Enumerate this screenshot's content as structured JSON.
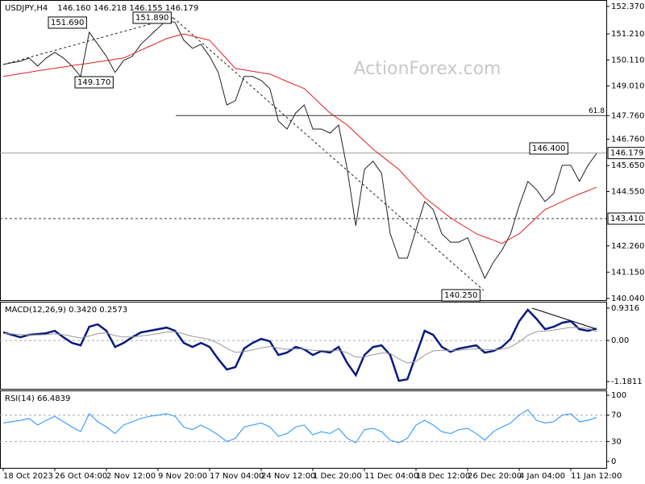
{
  "chart_data": [
    {
      "type": "line",
      "title": "USDJPY,H4",
      "subtitle": "146.160 146.218 146.155 146.179",
      "watermark": "ActionForex.com",
      "ylim": [
        139.97,
        152.64
      ],
      "yticks": [
        {
          "value": 152.37,
          "label": "152.370"
        },
        {
          "value": 151.21,
          "label": "151.210"
        },
        {
          "value": 150.11,
          "label": "150.110"
        },
        {
          "value": 149.01,
          "label": "149.010"
        },
        {
          "value": 147.76,
          "label": "147.760"
        },
        {
          "value": 146.76,
          "label": "146.760"
        },
        {
          "value": 145.65,
          "label": "145.650"
        },
        {
          "value": 144.55,
          "label": "144.550"
        },
        {
          "value": 142.26,
          "label": "142.260"
        },
        {
          "value": 141.15,
          "label": "141.150"
        },
        {
          "value": 140.04,
          "label": "140.040"
        }
      ],
      "levels": [
        {
          "value": 143.41,
          "label": "143.410",
          "style": "dashed"
        },
        {
          "value": 146.179,
          "label": "146.179",
          "style": "current"
        },
        {
          "value": 147.76,
          "label": "61.8",
          "style": "fib"
        }
      ],
      "annotations": [
        "151.690",
        "151.890",
        "149.170",
        "140.250",
        "146.400"
      ],
      "series": [
        {
          "color": "#222222",
          "values": [
            149.92,
            149.99,
            150.05,
            150.19,
            149.85,
            150.19,
            150.43,
            150.19,
            149.85,
            149.41,
            151.28,
            150.77,
            150.26,
            149.58,
            150.09,
            150.26,
            150.77,
            151.11,
            151.45,
            151.79,
            151.69,
            150.94,
            150.6,
            150.77,
            150.26,
            149.58,
            148.21,
            148.39,
            149.41,
            149.41,
            149.24,
            148.9,
            147.53,
            147.19,
            147.87,
            148.21,
            147.19,
            147.19,
            147.02,
            147.36,
            145.49,
            143.11,
            145.49,
            145.83,
            145.32,
            142.77,
            141.74,
            141.74,
            142.94,
            144.13,
            143.79,
            142.77,
            142.42,
            142.42,
            142.6,
            141.74,
            140.89,
            141.57,
            142.08,
            142.77,
            143.96,
            144.98,
            144.64,
            144.13,
            144.47,
            145.66,
            145.66,
            144.98,
            145.66,
            146.17
          ]
        },
        {
          "color": "#e02020",
          "values": [
            149.41,
            149.47,
            149.53,
            149.59,
            149.65,
            149.7,
            149.76,
            149.81,
            149.87,
            149.92,
            149.97,
            150.03,
            150.08,
            150.14,
            150.19,
            150.35,
            150.52,
            150.68,
            150.85,
            151.01,
            151.11,
            151.21,
            151.12,
            151.03,
            150.94,
            150.54,
            150.15,
            149.75,
            149.69,
            149.63,
            149.57,
            149.51,
            149.36,
            149.2,
            149.05,
            148.9,
            148.56,
            148.21,
            147.87,
            147.62,
            147.36,
            147.02,
            146.68,
            146.34,
            146.06,
            145.77,
            145.49,
            145.09,
            144.7,
            144.3,
            144.02,
            143.73,
            143.45,
            143.22,
            143.0,
            142.77,
            142.63,
            142.5,
            142.36,
            142.57,
            142.77,
            143.11,
            143.45,
            143.79,
            143.96,
            144.13,
            144.3,
            144.45,
            144.59,
            144.74
          ]
        }
      ]
    },
    {
      "type": "line",
      "title": "MACD(12,26,9) 0.3420 0.2573",
      "ylim": [
        -1.39,
        1.117
      ],
      "yticks": [
        0.9316,
        {
          "value": 0,
          "label": "0.00"
        },
        -1.1811
      ],
      "series": [
        {
          "color": "#0a1a80",
          "values": [
            0.232,
            0.163,
            0.093,
            0.163,
            0.186,
            0.209,
            0.279,
            0.093,
            -0.07,
            -0.139,
            0.395,
            0.464,
            0.279,
            -0.186,
            -0.07,
            0.093,
            0.232,
            0.279,
            0.325,
            0.372,
            0.279,
            -0.07,
            -0.186,
            -0.07,
            -0.186,
            -0.534,
            -0.836,
            -0.766,
            -0.232,
            -0.07,
            0.046,
            -0.023,
            -0.418,
            -0.348,
            -0.186,
            -0.255,
            -0.418,
            -0.302,
            -0.348,
            -0.186,
            -0.65,
            -0.998,
            -0.418,
            -0.186,
            -0.139,
            -0.418,
            -1.161,
            -1.115,
            -0.418,
            0.279,
            0.163,
            -0.186,
            -0.325,
            -0.232,
            -0.186,
            -0.139,
            -0.348,
            -0.302,
            -0.186,
            0.046,
            0.557,
            0.882,
            0.627,
            0.325,
            0.395,
            0.511,
            0.557,
            0.325,
            0.279,
            0.342
          ]
        },
        {
          "color": "#999999",
          "values": [
            0.2,
            0.19,
            0.17,
            0.16,
            0.16,
            0.17,
            0.19,
            0.17,
            0.12,
            0.07,
            0.13,
            0.2,
            0.22,
            0.14,
            0.1,
            0.1,
            0.13,
            0.16,
            0.2,
            0.24,
            0.25,
            0.19,
            0.12,
            0.08,
            0.03,
            -0.08,
            -0.23,
            -0.34,
            -0.32,
            -0.27,
            -0.21,
            -0.17,
            -0.22,
            -0.25,
            -0.24,
            -0.24,
            -0.28,
            -0.29,
            -0.3,
            -0.28,
            -0.35,
            -0.48,
            -0.47,
            -0.41,
            -0.36,
            -0.37,
            -0.53,
            -0.65,
            -0.6,
            -0.42,
            -0.3,
            -0.28,
            -0.29,
            -0.28,
            -0.26,
            -0.24,
            -0.26,
            -0.27,
            -0.25,
            -0.19,
            -0.04,
            0.15,
            0.25,
            0.27,
            0.3,
            0.34,
            0.38,
            0.37,
            0.35,
            0.257
          ]
        }
      ]
    },
    {
      "type": "line",
      "title": "RSI(14) 66.4839",
      "ylim": [
        -9.8,
        107.3
      ],
      "yticks": [
        100,
        70,
        30,
        0
      ],
      "levels": [
        70,
        30
      ],
      "categories": [
        "18 Oct 2023",
        null,
        null,
        null,
        null,
        null,
        "26 Oct 04:00",
        null,
        null,
        null,
        null,
        null,
        "2 Nov 12:00",
        null,
        null,
        null,
        null,
        null,
        "9 Nov 20:00",
        null,
        null,
        null,
        null,
        null,
        "17 Nov 04:00",
        null,
        null,
        null,
        null,
        null,
        "24 Nov 12:00",
        null,
        null,
        null,
        null,
        null,
        "1 Dec 20:00",
        null,
        null,
        null,
        null,
        null,
        "11 Dec 04:00",
        null,
        null,
        null,
        null,
        null,
        "18 Dec 12:00",
        null,
        null,
        null,
        null,
        null,
        "26 Dec 20:00",
        null,
        null,
        null,
        null,
        null,
        "4 Jan 04:00",
        null,
        null,
        null,
        null,
        null,
        "11 Jan 12:00",
        null,
        null,
        null
      ],
      "series": [
        {
          "color": "#1e90ff",
          "values": [
            58,
            60,
            62,
            65,
            55,
            62,
            68,
            60,
            52,
            45,
            72,
            60,
            52,
            42,
            55,
            60,
            65,
            68,
            70,
            72,
            68,
            52,
            48,
            55,
            48,
            40,
            30,
            35,
            52,
            55,
            58,
            52,
            38,
            42,
            52,
            55,
            40,
            45,
            42,
            50,
            35,
            28,
            48,
            50,
            45,
            32,
            28,
            35,
            55,
            62,
            55,
            45,
            42,
            48,
            50,
            42,
            32,
            45,
            52,
            58,
            70,
            78,
            62,
            58,
            60,
            70,
            72,
            60,
            62,
            66.48
          ]
        }
      ]
    }
  ]
}
